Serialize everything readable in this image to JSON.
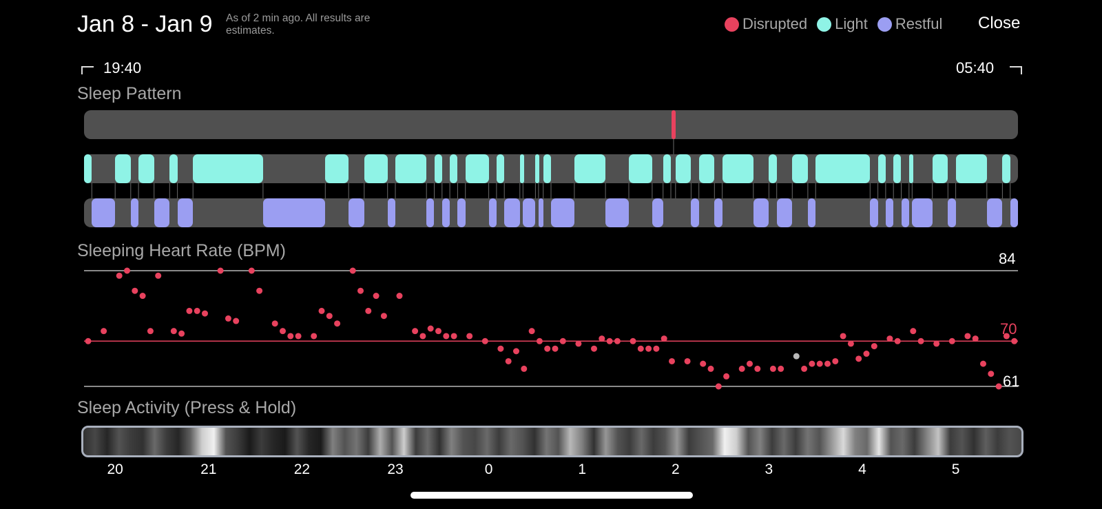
{
  "header": {
    "date_range": "Jan 8 - Jan 9",
    "subtitle": "As of 2 min ago. All results are estimates.",
    "close_label": "Close"
  },
  "legend": [
    {
      "label": "Disrupted",
      "color": "#e8425e"
    },
    {
      "label": "Light",
      "color": "#8ff3e6"
    },
    {
      "label": "Restful",
      "color": "#9b9ef2"
    }
  ],
  "time_range": {
    "start": "19:40",
    "end": "05:40"
  },
  "sleep_pattern": {
    "title": "Sleep Pattern",
    "total_minutes": 600,
    "disrupted": [
      [
        377.5,
        380
      ]
    ],
    "light": [
      [
        0,
        5
      ],
      [
        20,
        30
      ],
      [
        35,
        45
      ],
      [
        55,
        60
      ],
      [
        70,
        115
      ],
      [
        155,
        170
      ],
      [
        180,
        195
      ],
      [
        200,
        220
      ],
      [
        225,
        230
      ],
      [
        235,
        240
      ],
      [
        245,
        260
      ],
      [
        265,
        270
      ],
      [
        280,
        282
      ],
      [
        290,
        292
      ],
      [
        295,
        300
      ],
      [
        315,
        335
      ],
      [
        350,
        365
      ],
      [
        372,
        377
      ],
      [
        380,
        390
      ],
      [
        395,
        405
      ],
      [
        410,
        430
      ],
      [
        440,
        445
      ],
      [
        455,
        465
      ],
      [
        470,
        505
      ],
      [
        510,
        515
      ],
      [
        520,
        525
      ],
      [
        530,
        532
      ],
      [
        545,
        555
      ],
      [
        560,
        580
      ],
      [
        590,
        595
      ]
    ],
    "restful": [
      [
        5,
        20
      ],
      [
        30,
        35
      ],
      [
        45,
        55
      ],
      [
        60,
        70
      ],
      [
        115,
        155
      ],
      [
        170,
        180
      ],
      [
        195,
        200
      ],
      [
        220,
        225
      ],
      [
        230,
        235
      ],
      [
        240,
        245
      ],
      [
        260,
        265
      ],
      [
        270,
        280
      ],
      [
        282,
        290
      ],
      [
        292,
        295
      ],
      [
        300,
        315
      ],
      [
        335,
        350
      ],
      [
        365,
        372
      ],
      [
        390,
        395
      ],
      [
        405,
        410
      ],
      [
        430,
        440
      ],
      [
        445,
        455
      ],
      [
        465,
        470
      ],
      [
        505,
        510
      ],
      [
        515,
        520
      ],
      [
        525,
        530
      ],
      [
        532,
        545
      ],
      [
        555,
        560
      ],
      [
        580,
        590
      ],
      [
        595,
        600
      ]
    ]
  },
  "heart_rate": {
    "title": "Sleeping Heart Rate (BPM)",
    "max_label": "84",
    "avg_label": "70",
    "min_label": "61",
    "max": 84,
    "avg": 70,
    "min": 61,
    "points": [
      [
        0,
        70
      ],
      [
        10,
        72
      ],
      [
        20,
        83
      ],
      [
        25,
        84
      ],
      [
        30,
        80
      ],
      [
        35,
        79
      ],
      [
        40,
        72
      ],
      [
        45,
        83
      ],
      [
        55,
        72
      ],
      [
        60,
        71.5
      ],
      [
        65,
        76
      ],
      [
        70,
        76
      ],
      [
        75,
        75.5
      ],
      [
        85,
        84
      ],
      [
        90,
        74.5
      ],
      [
        95,
        74
      ],
      [
        105,
        84
      ],
      [
        110,
        80
      ],
      [
        120,
        73.5
      ],
      [
        125,
        72
      ],
      [
        130,
        71
      ],
      [
        135,
        71
      ],
      [
        145,
        71
      ],
      [
        150,
        76
      ],
      [
        155,
        75
      ],
      [
        160,
        73.5
      ],
      [
        170,
        84
      ],
      [
        175,
        80
      ],
      [
        180,
        76
      ],
      [
        185,
        79
      ],
      [
        190,
        75
      ],
      [
        200,
        79
      ],
      [
        210,
        72
      ],
      [
        215,
        71
      ],
      [
        220,
        72.5
      ],
      [
        225,
        72
      ],
      [
        230,
        71
      ],
      [
        235,
        71
      ],
      [
        245,
        71
      ],
      [
        255,
        70
      ],
      [
        265,
        68.5
      ],
      [
        270,
        66
      ],
      [
        275,
        68
      ],
      [
        280,
        64.5
      ],
      [
        285,
        72
      ],
      [
        290,
        70
      ],
      [
        295,
        68.5
      ],
      [
        300,
        68.5
      ],
      [
        305,
        70
      ],
      [
        315,
        69.5
      ],
      [
        325,
        68.5
      ],
      [
        330,
        70.5
      ],
      [
        335,
        70
      ],
      [
        340,
        70
      ],
      [
        350,
        70
      ],
      [
        355,
        68.5
      ],
      [
        360,
        68.5
      ],
      [
        365,
        68.5
      ],
      [
        370,
        70.5
      ],
      [
        375,
        66
      ],
      [
        385,
        66
      ],
      [
        395,
        65.5
      ],
      [
        400,
        64.5
      ],
      [
        405,
        61
      ],
      [
        410,
        63
      ],
      [
        420,
        64.5
      ],
      [
        425,
        65.5
      ],
      [
        430,
        64.5
      ],
      [
        440,
        64.5
      ],
      [
        445,
        64.5
      ],
      [
        455,
        67
      ],
      [
        460,
        64.5
      ],
      [
        465,
        65.5
      ],
      [
        470,
        65.5
      ],
      [
        475,
        65.5
      ],
      [
        480,
        66
      ],
      [
        485,
        71
      ],
      [
        490,
        69.5
      ],
      [
        495,
        66.5
      ],
      [
        500,
        67.5
      ],
      [
        505,
        69
      ],
      [
        515,
        70.5
      ],
      [
        520,
        70
      ],
      [
        530,
        72
      ],
      [
        535,
        70
      ],
      [
        545,
        69.5
      ],
      [
        555,
        70
      ],
      [
        565,
        71
      ],
      [
        570,
        70.5
      ],
      [
        575,
        65.5
      ],
      [
        580,
        63.5
      ],
      [
        585,
        61
      ],
      [
        590,
        71
      ],
      [
        595,
        70
      ]
    ],
    "selected_point_index": 70
  },
  "sleep_activity": {
    "title": "Sleep Activity (Press & Hold)",
    "intensity": [
      0.15,
      0.25,
      0.1,
      0.3,
      0.2,
      0.15,
      0.4,
      0.2,
      0.1,
      0.35,
      0.85,
      1.0,
      0.3,
      0.2,
      0.05,
      0.2,
      0.1,
      0.05,
      0.3,
      0.1,
      0.05,
      0.5,
      0.3,
      0.45,
      0.2,
      0.7,
      0.3,
      0.85,
      0.2,
      0.4,
      0.15,
      0.5,
      0.3,
      0.25,
      0.4,
      0.2,
      0.4,
      0.3,
      0.15,
      0.45,
      0.3,
      0.75,
      0.5,
      0.15,
      0.6,
      0.3,
      0.2,
      0.4,
      0.2,
      0.3,
      0.6,
      0.2,
      0.3,
      0.4,
      1.0,
      0.85,
      0.3,
      0.5,
      0.2,
      0.4,
      0.2,
      0.45,
      0.3,
      0.6,
      0.9,
      0.5,
      0.4,
      0.95,
      0.3,
      0.4,
      0.2,
      0.5,
      0.8,
      0.2,
      0.3,
      0.15,
      0.35,
      0.2,
      0.3,
      0.25
    ]
  },
  "x_axis": {
    "ticks": [
      {
        "label": "20",
        "minute": 20
      },
      {
        "label": "21",
        "minute": 80
      },
      {
        "label": "22",
        "minute": 140
      },
      {
        "label": "23",
        "minute": 200
      },
      {
        "label": "0",
        "minute": 260
      },
      {
        "label": "1",
        "minute": 320
      },
      {
        "label": "2",
        "minute": 380
      },
      {
        "label": "3",
        "minute": 440
      },
      {
        "label": "4",
        "minute": 500
      },
      {
        "label": "5",
        "minute": 560
      }
    ]
  },
  "colors": {
    "disrupted": "#e8425e",
    "light": "#8ff3e6",
    "restful": "#9b9ef2",
    "track": "#505050"
  }
}
